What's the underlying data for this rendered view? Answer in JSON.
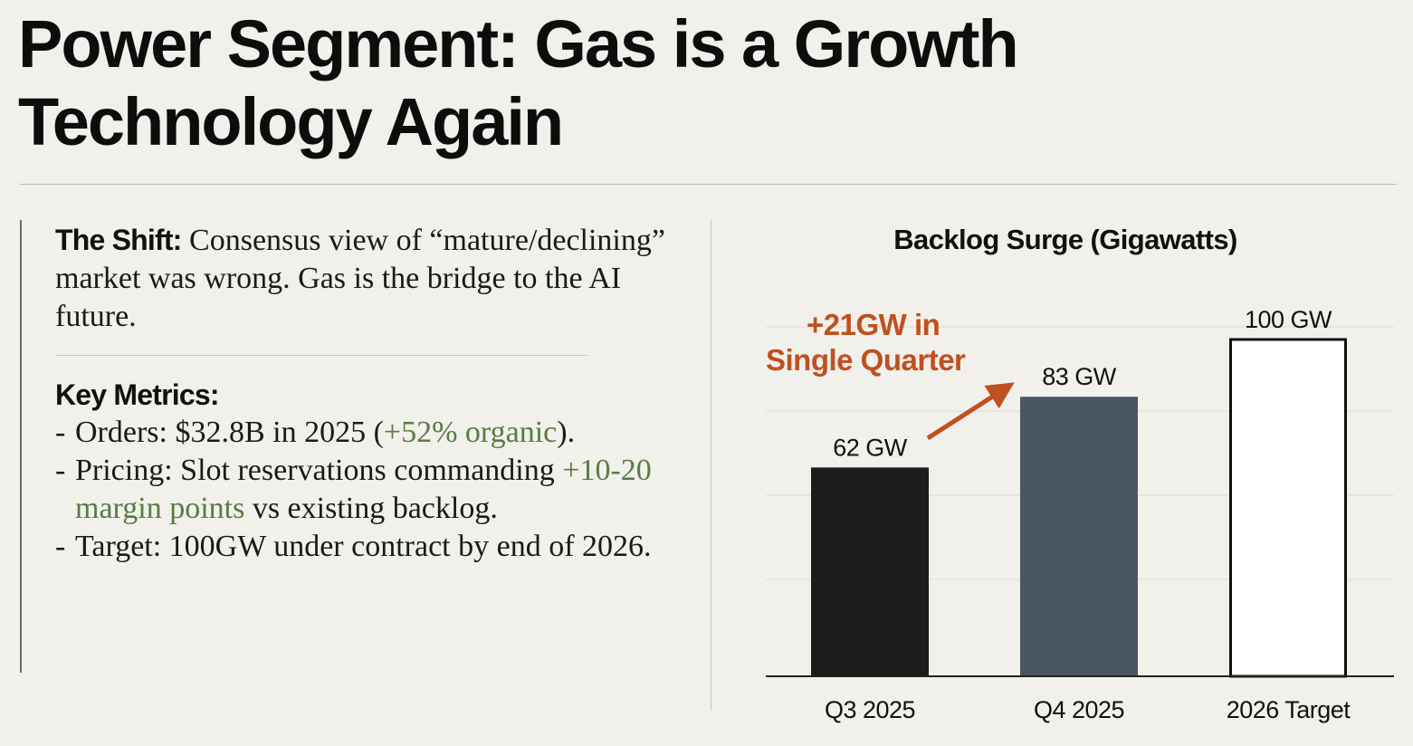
{
  "title": {
    "line1": "Power Segment: Gas is a Growth",
    "line2": "Technology Again"
  },
  "shift": {
    "label": "The Shift:",
    "text": " Consensus view of “mature/declining” market was wrong. Gas is the bridge to the AI future."
  },
  "metrics": {
    "heading": "Key Metrics:",
    "items": [
      {
        "dash": "-",
        "pre": "Orders: $32.8B in 2025 (",
        "highlight": "+52% organic",
        "post": ")."
      },
      {
        "dash": "-",
        "pre": "Pricing: Slot reservations commanding ",
        "highlight": "+10-20 margin points",
        "post": " vs existing backlog."
      },
      {
        "dash": "-",
        "pre": "Target: 100GW under contract by end of 2026.",
        "highlight": "",
        "post": ""
      }
    ]
  },
  "colors": {
    "background": "#f1f0eb",
    "highlight_green": "#5a7a43",
    "accent_orange": "#c0501f",
    "bar_q3": "#1c1c1c",
    "bar_q4": "#4b5664",
    "bar_target_fill": "#ffffff",
    "bar_target_stroke": "#111111"
  },
  "chart_data": {
    "type": "bar",
    "title": "Backlog Surge (Gigawatts)",
    "categories": [
      "Q3 2025",
      "Q4 2025",
      "2026 Target"
    ],
    "values": [
      62,
      83,
      100
    ],
    "value_labels": [
      "62 GW",
      "83 GW",
      "100 GW"
    ],
    "unit": "GW",
    "ylim": [
      0,
      125
    ],
    "grid": true,
    "xlabel": "",
    "ylabel": "",
    "annotation": {
      "text_line1": "+21GW in",
      "text_line2": "Single Quarter",
      "from": "Q3 2025",
      "to": "Q4 2025"
    }
  }
}
